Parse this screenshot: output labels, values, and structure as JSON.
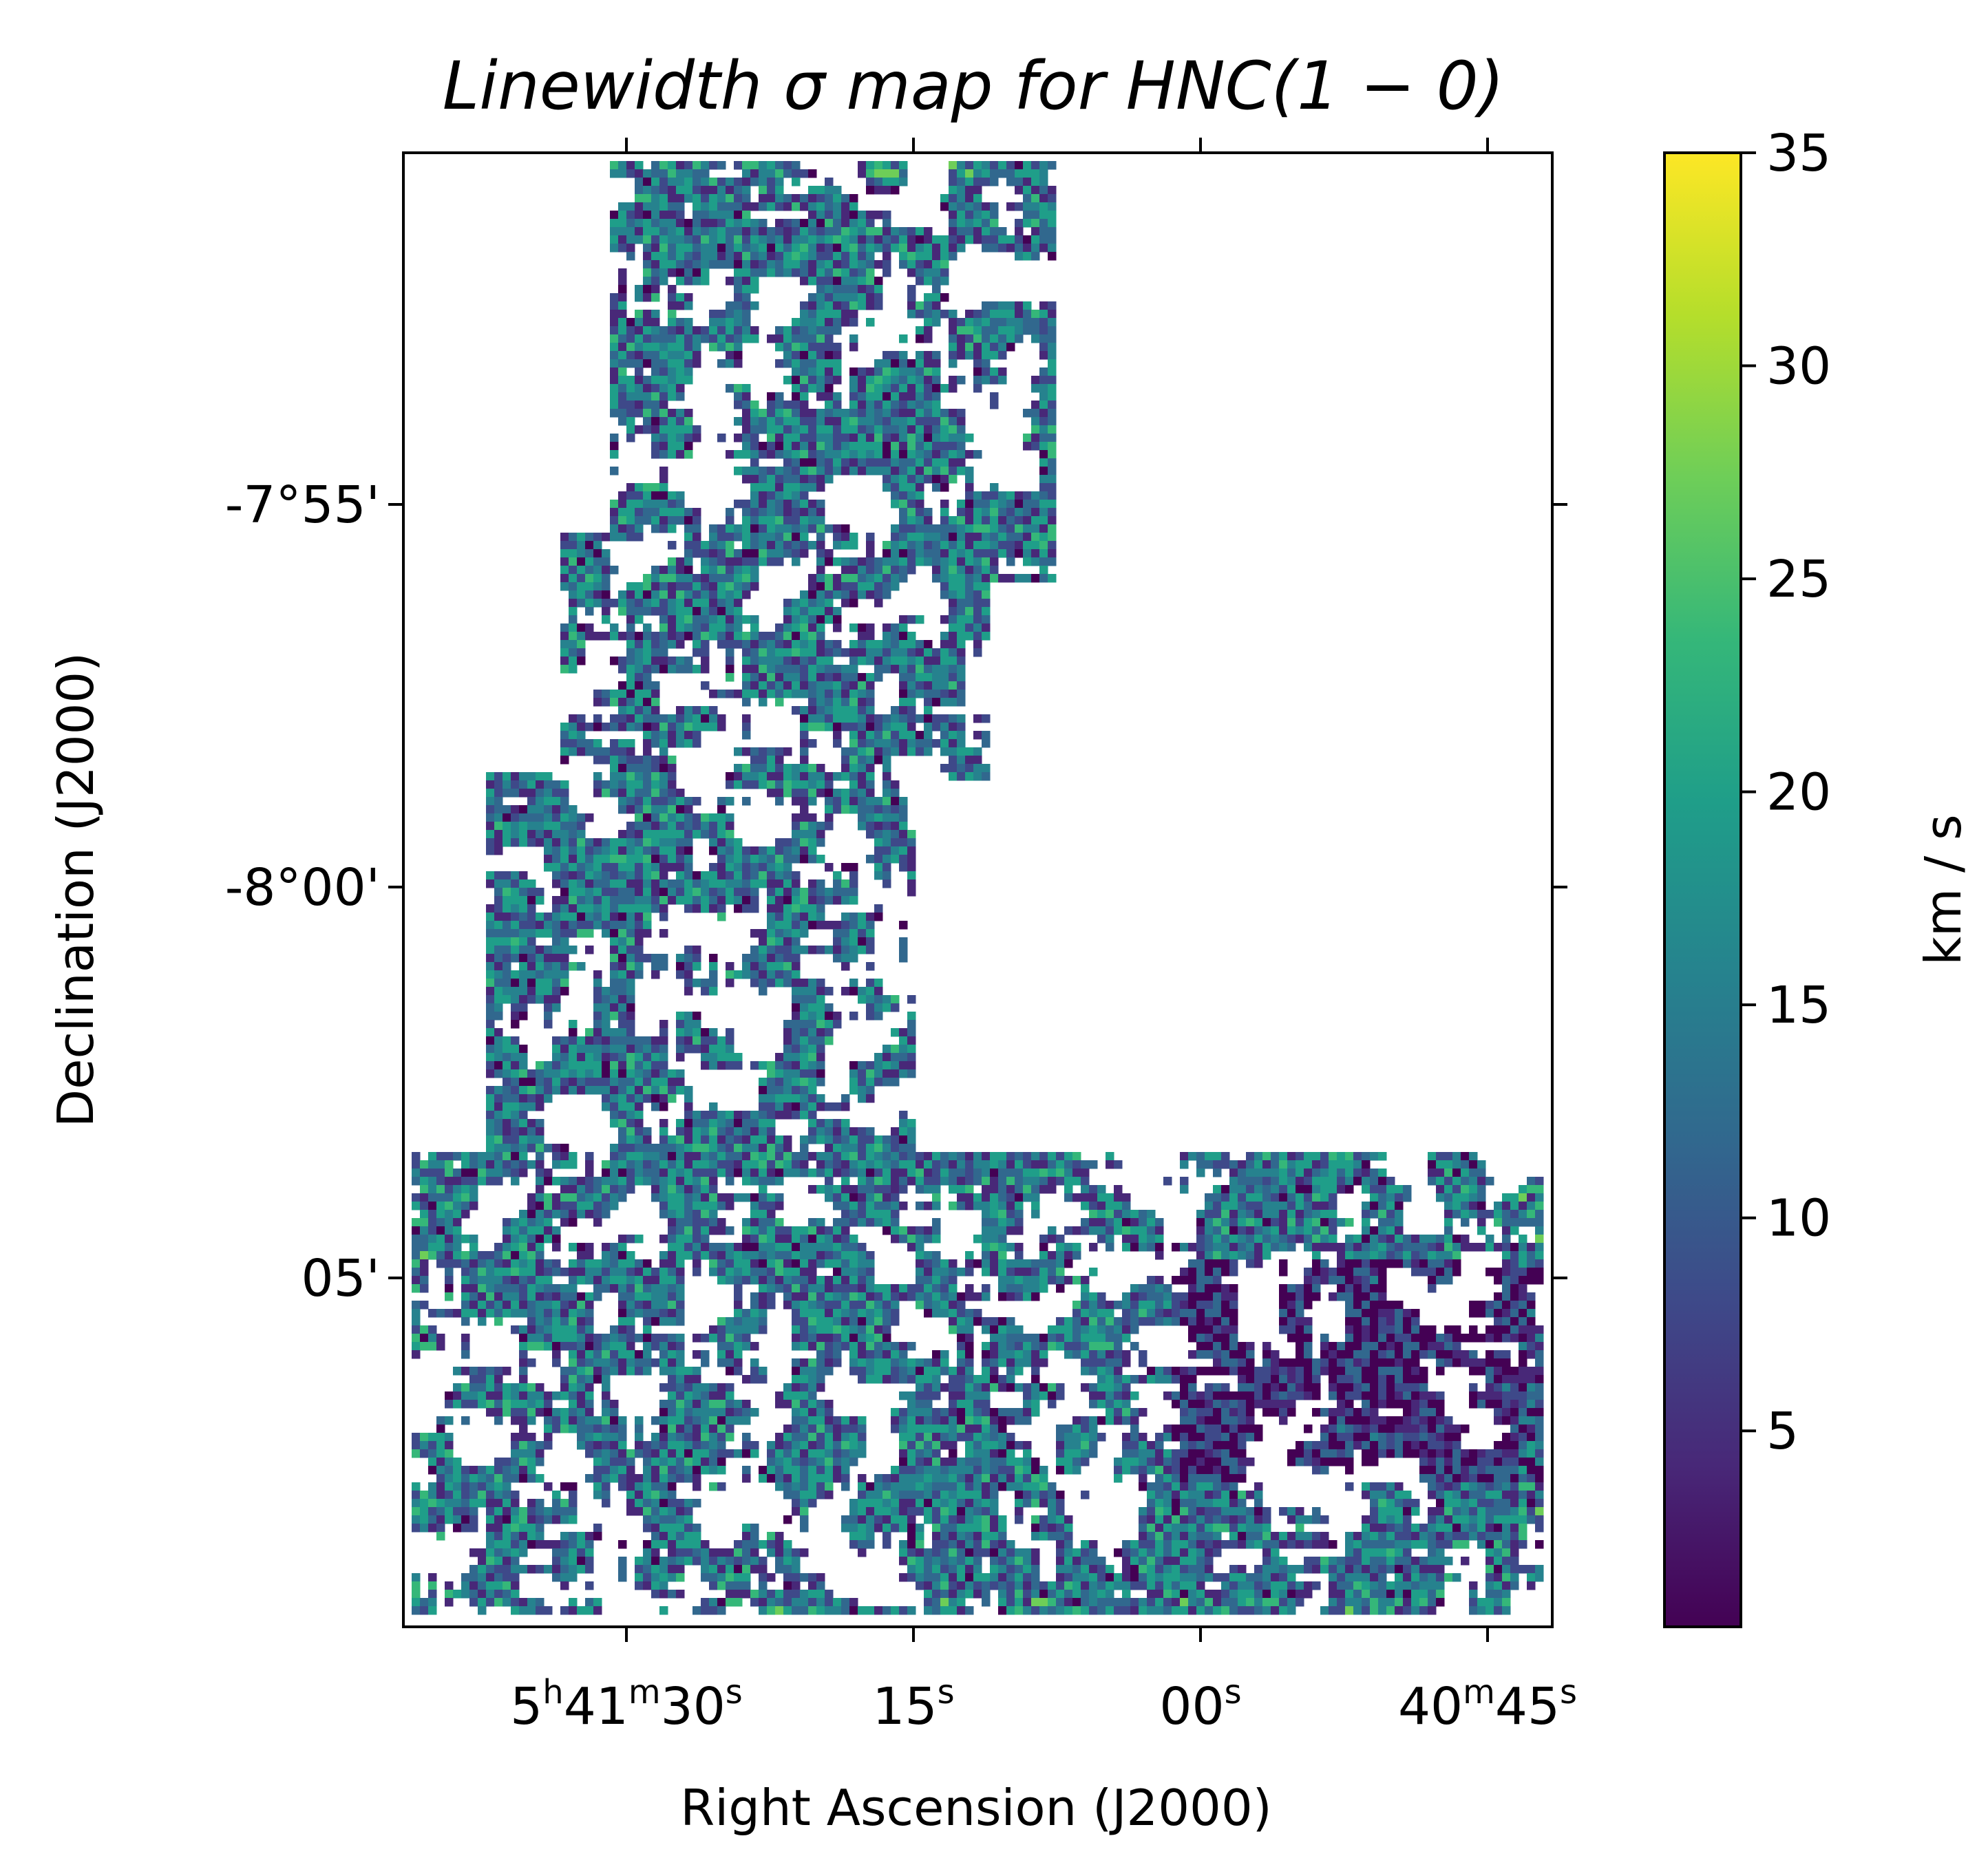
{
  "chart_data": {
    "type": "heatmap",
    "title": "Linewidth   σ   map   for   HNC(1 − 0)",
    "xlabel": "Right Ascension (J2000)",
    "ylabel": "Declination (J2000)",
    "x_ticks": [
      {
        "label": "5h41m30s",
        "parts": [
          [
            "5",
            "n"
          ],
          [
            "h",
            "s"
          ],
          [
            "41",
            "n"
          ],
          [
            "m",
            "s"
          ],
          [
            "30",
            "n"
          ],
          [
            "s",
            "s"
          ]
        ]
      },
      {
        "label": "15s",
        "parts": [
          [
            "15",
            "n"
          ],
          [
            "s",
            "s"
          ]
        ]
      },
      {
        "label": "00s",
        "parts": [
          [
            "00",
            "n"
          ],
          [
            "s",
            "s"
          ]
        ]
      },
      {
        "label": "40m45s",
        "parts": [
          [
            "40",
            "n"
          ],
          [
            "m",
            "s"
          ],
          [
            "45",
            "n"
          ],
          [
            "s",
            "s"
          ]
        ]
      }
    ],
    "y_ticks": [
      "-7°55'",
      "-8°00'",
      "05'"
    ],
    "colorbar": {
      "label": "km / s",
      "colormap": "viridis",
      "range": [
        0.4,
        35
      ],
      "ticks": [
        5,
        10,
        15,
        20,
        25,
        30,
        35
      ]
    },
    "grid": false,
    "colors": {
      "viridis": [
        "#440154",
        "#482878",
        "#3e4989",
        "#31688e",
        "#26828e",
        "#1f9e89",
        "#35b779",
        "#6ece58",
        "#b5de2b",
        "#fde725"
      ]
    }
  }
}
